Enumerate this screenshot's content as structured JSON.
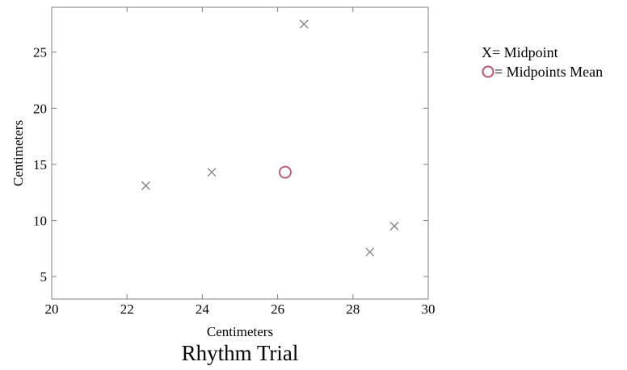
{
  "chart_data": {
    "type": "scatter",
    "title": "Rhythm Trial",
    "xlabel": "Centimeters",
    "ylabel": "Centimeters",
    "xlim": [
      20,
      30
    ],
    "ylim": [
      3,
      29
    ],
    "xticks": [
      20,
      22,
      24,
      26,
      28,
      30
    ],
    "yticks": [
      5,
      10,
      15,
      20,
      25
    ],
    "grid": false,
    "legend_position": "right",
    "series": [
      {
        "name": "Midpoint",
        "legend_label": "X= Midpoint",
        "marker": "x",
        "color": "#808080",
        "points": [
          {
            "x": 22.5,
            "y": 13.1
          },
          {
            "x": 24.25,
            "y": 14.3
          },
          {
            "x": 26.7,
            "y": 27.5
          },
          {
            "x": 28.45,
            "y": 7.2
          },
          {
            "x": 29.1,
            "y": 9.5
          }
        ]
      },
      {
        "name": "Midpoints Mean",
        "legend_label": "= Midpoints Mean",
        "marker": "circle",
        "color": "#c0506a",
        "points": [
          {
            "x": 26.2,
            "y": 14.3
          }
        ]
      }
    ]
  }
}
